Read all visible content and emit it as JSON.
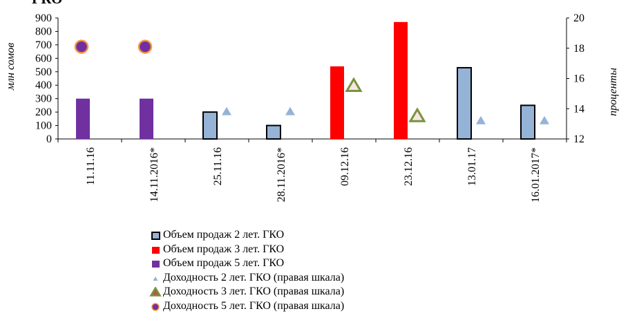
{
  "page_title": "ГКО",
  "chart_data": {
    "type": "bar",
    "categories": [
      "11.11.16",
      "14.11.2016*",
      "25.11.16",
      "28.11.2016*",
      "09.12.16",
      "23.12.16",
      "13.01.17",
      "16.01.2017*"
    ],
    "ylabel": "млн  сомов",
    "y2label": "проценты",
    "ylim": [
      0,
      900
    ],
    "y_ticks": [
      0,
      100,
      200,
      300,
      400,
      500,
      600,
      700,
      800,
      900
    ],
    "y2lim": [
      12,
      20
    ],
    "y2_ticks": [
      12,
      14,
      16,
      18,
      20
    ],
    "grid": false,
    "legend_position": "bottom",
    "series": [
      {
        "name": "Объем продаж 2 лет. ГКО",
        "kind": "bar",
        "axis": "left",
        "color": "#95B3D7",
        "stroke": "#000000",
        "values": [
          null,
          null,
          200,
          100,
          null,
          null,
          530,
          250
        ]
      },
      {
        "name": "Объем продаж 3 лет. ГКО",
        "kind": "bar",
        "axis": "left",
        "color": "#FF0000",
        "stroke": "none",
        "values": [
          null,
          null,
          null,
          null,
          540,
          870,
          null,
          null
        ]
      },
      {
        "name": "Объем продаж 5 лет. ГКО",
        "kind": "bar",
        "axis": "left",
        "color": "#7030A0",
        "stroke": "none",
        "values": [
          300,
          300,
          null,
          null,
          null,
          null,
          null,
          null
        ]
      },
      {
        "name": "Доходность 2 лет. ГКО (правая шкала)",
        "kind": "marker",
        "marker": "triangle",
        "axis": "right",
        "color": "#95B3D7",
        "values": [
          null,
          null,
          13.8,
          13.8,
          null,
          null,
          13.2,
          13.2
        ]
      },
      {
        "name": "Доходность 3 лет. ГКО (правая шкала)",
        "kind": "marker",
        "marker": "triangle-outline",
        "axis": "right",
        "color": "#77933C",
        "values": [
          null,
          null,
          null,
          null,
          15.5,
          13.5,
          null,
          null
        ]
      },
      {
        "name": "Доходность 5 лет. ГКО (правая шкала)",
        "kind": "marker",
        "marker": "circle",
        "axis": "right",
        "color": "#7030A0",
        "edge": "#F79646",
        "values": [
          18.1,
          18.1,
          null,
          null,
          null,
          null,
          null,
          null
        ]
      }
    ]
  }
}
